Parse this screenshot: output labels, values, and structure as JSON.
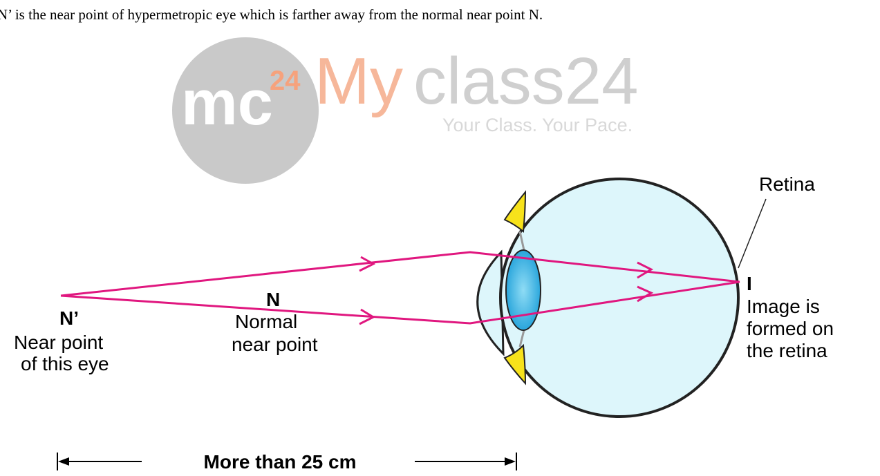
{
  "caption": "N’ is the near point of hypermetropic eye which is farther away from the normal near point N.",
  "watermark": {
    "logo": "mc",
    "logo_sup": "24",
    "brand_part1": "My",
    "brand_part2": "class24",
    "tagline": "Your Class. Your Pace."
  },
  "labels": {
    "retina": "Retina",
    "far_point": "N’",
    "far_point_desc": [
      "Near point",
      "of this eye"
    ],
    "normal_point": "N",
    "normal_point_desc": [
      "Normal",
      "near point"
    ],
    "image": "I",
    "image_desc": [
      "Image is",
      "formed on",
      "the retina"
    ],
    "distance": "More than 25 cm"
  }
}
